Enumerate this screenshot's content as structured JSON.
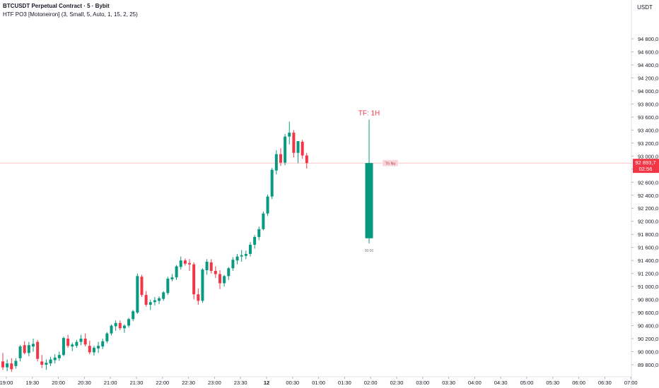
{
  "header": {
    "title": "BTCUSDT Perpetual Contract · 5 · Bybit",
    "indicator": "HTF PO3 [Motoneiron] (3, Small, 5, Auto, 1, 15, 2, 25)"
  },
  "price_scale": {
    "currency": "USDT",
    "last_price": "92 893,7",
    "countdown": "02:56"
  },
  "htf": {
    "label": "TF: 1H",
    "time_label": "00:00",
    "price_tag": "Th Nu"
  },
  "colors": {
    "up": "#089981",
    "down": "#f23645",
    "htf_label": "#f23645",
    "price_line": "#f23645"
  },
  "chart_data": {
    "type": "candlestick",
    "symbol": "BTCUSDT",
    "ylim": [
      89700,
      95000
    ],
    "y_ticks": [
      "94 800,0",
      "94 600,0",
      "94 400,0",
      "94 200,0",
      "94 000,0",
      "93 800,0",
      "93 600,0",
      "93 400,0",
      "93 200,0",
      "93 000,0",
      "92 800,0",
      "92 600,0",
      "92 400,0",
      "92 200,0",
      "92 000,0",
      "91 800,0",
      "91 600,0",
      "91 400,0",
      "91 200,0",
      "91 000,0",
      "90 800,0",
      "90 600,0",
      "90 400,0",
      "90 200,0",
      "90 000,0",
      "89 800,0"
    ],
    "x_ticks": [
      "19:00",
      "19:30",
      "20:00",
      "20:30",
      "21:00",
      "21:30",
      "22:00",
      "22:30",
      "23:00",
      "23:30",
      "12",
      "00:30",
      "01:00",
      "01:30",
      "02:00",
      "02:30",
      "03:00",
      "03:30",
      "04:00",
      "04:30",
      "05:00",
      "05:30",
      "06:00",
      "06:30",
      "07:00"
    ],
    "candles": [
      {
        "o": 89850,
        "h": 89980,
        "l": 89720,
        "c": 89760
      },
      {
        "o": 89760,
        "h": 89880,
        "l": 89700,
        "c": 89820
      },
      {
        "o": 89820,
        "h": 89900,
        "l": 89690,
        "c": 89730
      },
      {
        "o": 89780,
        "h": 89900,
        "l": 89740,
        "c": 89860
      },
      {
        "o": 89900,
        "h": 90100,
        "l": 89850,
        "c": 90080
      },
      {
        "o": 90100,
        "h": 90160,
        "l": 89960,
        "c": 89980
      },
      {
        "o": 89980,
        "h": 90150,
        "l": 89930,
        "c": 90100
      },
      {
        "o": 90080,
        "h": 90200,
        "l": 90000,
        "c": 90120
      },
      {
        "o": 90150,
        "h": 90180,
        "l": 89850,
        "c": 89890
      },
      {
        "o": 89850,
        "h": 89950,
        "l": 89750,
        "c": 89800
      },
      {
        "o": 89800,
        "h": 89880,
        "l": 89720,
        "c": 89830
      },
      {
        "o": 89820,
        "h": 89920,
        "l": 89780,
        "c": 89880
      },
      {
        "o": 89870,
        "h": 89960,
        "l": 89820,
        "c": 89910
      },
      {
        "o": 89900,
        "h": 90000,
        "l": 89860,
        "c": 89950
      },
      {
        "o": 89950,
        "h": 90230,
        "l": 89930,
        "c": 90210
      },
      {
        "o": 90200,
        "h": 90260,
        "l": 90060,
        "c": 90090
      },
      {
        "o": 90080,
        "h": 90140,
        "l": 90010,
        "c": 90110
      },
      {
        "o": 90090,
        "h": 90180,
        "l": 90060,
        "c": 90150
      },
      {
        "o": 90150,
        "h": 90260,
        "l": 90100,
        "c": 90200
      },
      {
        "o": 90200,
        "h": 90280,
        "l": 90080,
        "c": 90110
      },
      {
        "o": 90090,
        "h": 90170,
        "l": 89960,
        "c": 89990
      },
      {
        "o": 89990,
        "h": 90090,
        "l": 89940,
        "c": 90060
      },
      {
        "o": 90050,
        "h": 90150,
        "l": 89980,
        "c": 90090
      },
      {
        "o": 90080,
        "h": 90200,
        "l": 90040,
        "c": 90160
      },
      {
        "o": 90160,
        "h": 90300,
        "l": 90130,
        "c": 90280
      },
      {
        "o": 90280,
        "h": 90420,
        "l": 90250,
        "c": 90400
      },
      {
        "o": 90390,
        "h": 90480,
        "l": 90320,
        "c": 90440
      },
      {
        "o": 90440,
        "h": 90480,
        "l": 90330,
        "c": 90360
      },
      {
        "o": 90360,
        "h": 90420,
        "l": 90290,
        "c": 90400
      },
      {
        "o": 90400,
        "h": 90520,
        "l": 90370,
        "c": 90500
      },
      {
        "o": 90500,
        "h": 90640,
        "l": 90470,
        "c": 90620
      },
      {
        "o": 90600,
        "h": 91200,
        "l": 90580,
        "c": 91160
      },
      {
        "o": 91150,
        "h": 91180,
        "l": 90840,
        "c": 90870
      },
      {
        "o": 90870,
        "h": 90930,
        "l": 90690,
        "c": 90720
      },
      {
        "o": 90720,
        "h": 90800,
        "l": 90640,
        "c": 90760
      },
      {
        "o": 90760,
        "h": 90840,
        "l": 90710,
        "c": 90790
      },
      {
        "o": 90780,
        "h": 90850,
        "l": 90730,
        "c": 90820
      },
      {
        "o": 90810,
        "h": 90930,
        "l": 90780,
        "c": 90910
      },
      {
        "o": 90900,
        "h": 91150,
        "l": 90870,
        "c": 91120
      },
      {
        "o": 91110,
        "h": 91190,
        "l": 91080,
        "c": 91140
      },
      {
        "o": 91140,
        "h": 91330,
        "l": 91100,
        "c": 91310
      },
      {
        "o": 91300,
        "h": 91460,
        "l": 91260,
        "c": 91400
      },
      {
        "o": 91400,
        "h": 91430,
        "l": 91320,
        "c": 91350
      },
      {
        "o": 91360,
        "h": 91420,
        "l": 91240,
        "c": 91340
      },
      {
        "o": 91340,
        "h": 91370,
        "l": 90800,
        "c": 90880
      },
      {
        "o": 90880,
        "h": 90970,
        "l": 90720,
        "c": 90780
      },
      {
        "o": 90780,
        "h": 91280,
        "l": 90750,
        "c": 91260
      },
      {
        "o": 91250,
        "h": 91420,
        "l": 91180,
        "c": 91380
      },
      {
        "o": 91370,
        "h": 91420,
        "l": 91200,
        "c": 91240
      },
      {
        "o": 91240,
        "h": 91310,
        "l": 91130,
        "c": 91190
      },
      {
        "o": 91190,
        "h": 91250,
        "l": 90960,
        "c": 91050
      },
      {
        "o": 91050,
        "h": 91180,
        "l": 91000,
        "c": 91160
      },
      {
        "o": 91160,
        "h": 91300,
        "l": 91100,
        "c": 91280
      },
      {
        "o": 91280,
        "h": 91450,
        "l": 91240,
        "c": 91410
      },
      {
        "o": 91400,
        "h": 91500,
        "l": 91340,
        "c": 91460
      },
      {
        "o": 91460,
        "h": 91560,
        "l": 91380,
        "c": 91480
      },
      {
        "o": 91470,
        "h": 91550,
        "l": 91420,
        "c": 91500
      },
      {
        "o": 91500,
        "h": 91680,
        "l": 91460,
        "c": 91640
      },
      {
        "o": 91640,
        "h": 91790,
        "l": 91580,
        "c": 91760
      },
      {
        "o": 91760,
        "h": 91920,
        "l": 91710,
        "c": 91880
      },
      {
        "o": 91880,
        "h": 92150,
        "l": 91860,
        "c": 92120
      },
      {
        "o": 92120,
        "h": 92410,
        "l": 92080,
        "c": 92380
      },
      {
        "o": 92380,
        "h": 92820,
        "l": 92340,
        "c": 92790
      },
      {
        "o": 92780,
        "h": 93090,
        "l": 92720,
        "c": 93030
      },
      {
        "o": 93030,
        "h": 93120,
        "l": 92850,
        "c": 92900
      },
      {
        "o": 92900,
        "h": 93340,
        "l": 92860,
        "c": 93300
      },
      {
        "o": 93300,
        "h": 93530,
        "l": 93180,
        "c": 93360
      },
      {
        "o": 93360,
        "h": 93400,
        "l": 92980,
        "c": 93050
      },
      {
        "o": 93050,
        "h": 93180,
        "l": 92890,
        "c": 93230
      },
      {
        "o": 93220,
        "h": 93250,
        "l": 92960,
        "c": 93010
      },
      {
        "o": 93010,
        "h": 93050,
        "l": 92810,
        "c": 92894
      }
    ],
    "htf_candle": {
      "timeframe": "1H",
      "o": 91740,
      "h": 93560,
      "l": 91660,
      "c": 92894
    }
  }
}
